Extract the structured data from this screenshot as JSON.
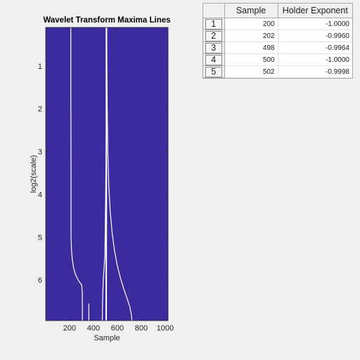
{
  "chart_data": {
    "type": "line",
    "title": "Wavelet Transform Maxima Lines",
    "xlabel": "Sample",
    "ylabel": "log2(scale)",
    "xlim": [
      0,
      1024
    ],
    "ylim": [
      0.1,
      6.95
    ],
    "y_reversed": true,
    "xticks": [
      200,
      400,
      600,
      800,
      1000
    ],
    "yticks": [
      1,
      2,
      3,
      4,
      5,
      6
    ],
    "background_color": "#3b2b9f",
    "line_color": "#ffffff",
    "grid": false,
    "series": [
      {
        "x": [
          210,
          210,
          211,
          212,
          212,
          212
        ],
        "y": [
          0.1,
          1.5,
          2.5,
          3.5,
          4.5,
          5.0
        ]
      },
      {
        "x": [
          212,
          216,
          222,
          232,
          246,
          262,
          278,
          292,
          302,
          306,
          307,
          307
        ],
        "y": [
          5.0,
          5.3,
          5.5,
          5.7,
          5.85,
          5.95,
          6.03,
          6.08,
          6.13,
          6.3,
          6.6,
          6.95
        ]
      },
      {
        "x": [
          508,
          508,
          508,
          507,
          506
        ],
        "y": [
          0.1,
          1.0,
          2.5,
          4.5,
          6.95
        ]
      },
      {
        "x": [
          510,
          509,
          507,
          504,
          501,
          498,
          496,
          496
        ],
        "y": [
          0.1,
          1.0,
          2.5,
          3.5,
          4.3,
          4.9,
          5.3,
          5.4
        ]
      },
      {
        "x": [
          496,
          489,
          482,
          477,
          475,
          474
        ],
        "y": [
          5.4,
          5.7,
          6.0,
          6.35,
          6.65,
          6.95
        ]
      },
      {
        "x": [
          510,
          512,
          515,
          520,
          528,
          540,
          556,
          575,
          598,
          625,
          652,
          680,
          703,
          716,
          722
        ],
        "y": [
          0.1,
          1.0,
          2.0,
          3.0,
          3.8,
          4.4,
          4.9,
          5.3,
          5.65,
          5.95,
          6.2,
          6.42,
          6.62,
          6.8,
          6.95
        ]
      },
      {
        "x": [
          361,
          361,
          361
        ],
        "y": [
          6.55,
          6.8,
          6.95
        ]
      }
    ]
  },
  "table": {
    "columns": [
      "Sample",
      "Holder Exponent"
    ],
    "rows": [
      {
        "index": "1",
        "sample": "200",
        "holder": "-1.0000"
      },
      {
        "index": "2",
        "sample": "202",
        "holder": "-0.9960"
      },
      {
        "index": "3",
        "sample": "498",
        "holder": "-0.9964"
      },
      {
        "index": "4",
        "sample": "500",
        "holder": "-1.0000"
      },
      {
        "index": "5",
        "sample": "502",
        "holder": "-0.9998"
      }
    ]
  }
}
